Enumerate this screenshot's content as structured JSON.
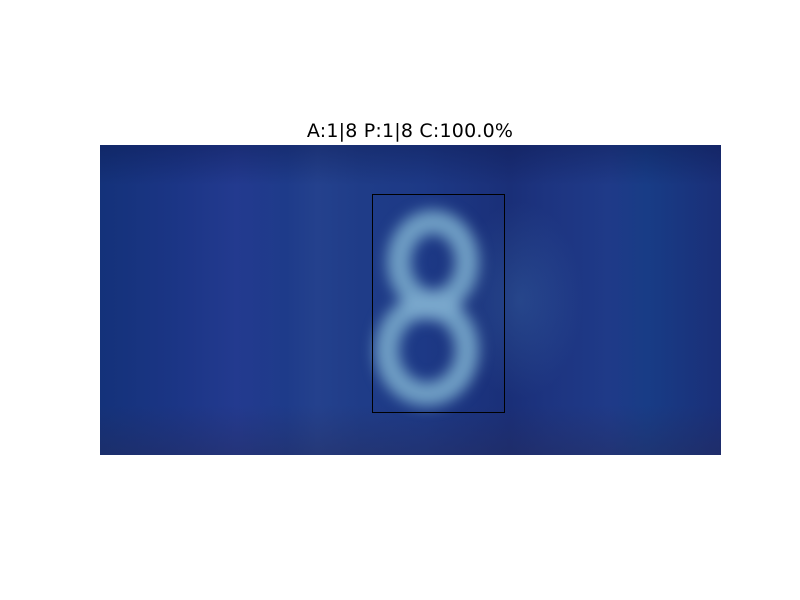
{
  "figure": {
    "title": "A:1|8 P:1|8 C:100.0%"
  },
  "image": {
    "dominant_color": "#1e3886",
    "digit_glyph_color": "#6f9ec4"
  },
  "bounding_box": {
    "color": "#000000"
  }
}
